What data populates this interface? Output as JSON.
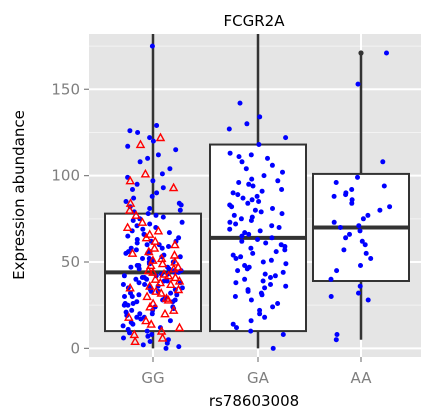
{
  "chart_data": {
    "type": "boxplot",
    "title": "FCGR2A",
    "xlabel": "rs78603008",
    "ylabel": "Expression abundance",
    "categories": [
      "GG",
      "GA",
      "AA"
    ],
    "ylim": [
      -5,
      182
    ],
    "yticks": [
      0,
      50,
      100,
      150
    ],
    "grid": true,
    "legend": "none",
    "colors": {
      "panel": "#e5e5e5",
      "grid": "#ffffff",
      "box": "#333333",
      "point_blue": "#0000ff",
      "point_red": "#ff0000"
    },
    "boxes": [
      {
        "category": "GG",
        "lower_whisker": 0,
        "q1": 10,
        "median": 44,
        "q3": 78,
        "upper_whisker": 182
      },
      {
        "category": "GA",
        "lower_whisker": 0,
        "q1": 10,
        "median": 64,
        "q3": 118,
        "upper_whisker": 182
      },
      {
        "category": "AA",
        "lower_whisker": 5,
        "q1": 39,
        "median": 70,
        "q3": 101,
        "upper_whisker": 170
      }
    ],
    "outliers": [
      {
        "category": "AA",
        "value": 171
      }
    ],
    "jitter_points": {
      "GG": {
        "blue": [
          175,
          129,
          126,
          125,
          122,
          120,
          117,
          115,
          112,
          110,
          108,
          104,
          101,
          99,
          97,
          95,
          93,
          92,
          90,
          88,
          87,
          85,
          84,
          83,
          82,
          81,
          80,
          79,
          78,
          77,
          76,
          75,
          74,
          73,
          72,
          71,
          70,
          69,
          68,
          67,
          66,
          66,
          65,
          64,
          63,
          62,
          62,
          61,
          60,
          60,
          59,
          58,
          58,
          57,
          56,
          56,
          55,
          55,
          54,
          53,
          53,
          52,
          52,
          51,
          50,
          50,
          49,
          49,
          48,
          48,
          47,
          47,
          46,
          46,
          45,
          45,
          44,
          44,
          43,
          43,
          42,
          42,
          41,
          41,
          40,
          40,
          39,
          39,
          38,
          38,
          37,
          37,
          36,
          36,
          35,
          35,
          34,
          34,
          33,
          33,
          32,
          32,
          31,
          31,
          30,
          30,
          29,
          29,
          28,
          28,
          27,
          27,
          26,
          26,
          25,
          25,
          24,
          24,
          23,
          22,
          22,
          21,
          20,
          20,
          19,
          18,
          18,
          17,
          16,
          15,
          14,
          13,
          12,
          11,
          10,
          9,
          8,
          7,
          6,
          5,
          4,
          3,
          2,
          1,
          0
        ],
        "red": [
          122,
          118,
          101,
          97,
          93,
          84,
          80,
          77,
          73,
          70,
          68,
          66,
          64,
          62,
          60,
          58,
          56,
          55,
          54,
          52,
          51,
          50,
          49,
          48,
          47,
          46,
          45,
          44,
          43,
          42,
          41,
          40,
          39,
          38,
          37,
          36,
          35,
          34,
          33,
          32,
          30,
          29,
          28,
          26,
          24,
          22,
          20,
          18,
          16,
          14,
          12,
          10,
          8,
          6,
          4
        ]
      },
      "GA": {
        "blue": [
          142,
          134,
          130,
          127,
          122,
          118,
          113,
          112,
          111,
          110,
          108,
          106,
          104,
          102,
          100,
          98,
          97,
          96,
          95,
          94,
          92,
          91,
          90,
          89,
          88,
          87,
          86,
          85,
          84,
          83,
          82,
          81,
          80,
          79,
          78,
          77,
          76,
          75,
          74,
          73,
          72,
          71,
          70,
          69,
          68,
          67,
          66,
          65,
          64,
          63,
          62,
          61,
          60,
          59,
          58,
          57,
          56,
          55,
          54,
          53,
          52,
          51,
          50,
          49,
          48,
          47,
          46,
          45,
          44,
          43,
          42,
          41,
          40,
          39,
          38,
          37,
          36,
          35,
          34,
          33,
          32,
          31,
          30,
          28,
          26,
          24,
          22,
          20,
          18,
          16,
          14,
          12,
          10,
          8,
          0
        ]
      },
      "AA": {
        "blue": [
          171,
          153,
          108,
          99,
          96,
          94,
          92,
          90,
          89,
          88,
          86,
          84,
          82,
          80,
          77,
          75,
          73,
          71,
          70,
          68,
          66,
          64,
          62,
          60,
          57,
          55,
          52,
          48,
          45,
          40,
          36,
          32,
          30,
          28,
          8,
          5
        ]
      }
    }
  }
}
